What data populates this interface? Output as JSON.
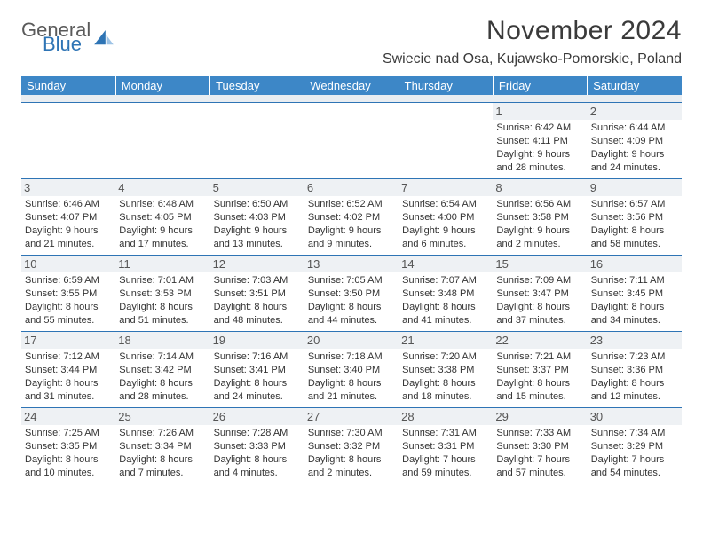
{
  "brand": {
    "line1": "General",
    "line2": "Blue"
  },
  "title": "November 2024",
  "location": "Swiecie nad Osa, Kujawsko-Pomorskie, Poland",
  "weekdays": [
    "Sunday",
    "Monday",
    "Tuesday",
    "Wednesday",
    "Thursday",
    "Friday",
    "Saturday"
  ],
  "colors": {
    "header_bg": "#3d87c7",
    "header_text": "#ffffff",
    "rule": "#2e74b5",
    "daynum_bg": "#eef1f4",
    "text": "#333333"
  },
  "weeks": [
    [
      {
        "empty": true
      },
      {
        "empty": true
      },
      {
        "empty": true
      },
      {
        "empty": true
      },
      {
        "empty": true
      },
      {
        "day": "1",
        "sunrise": "Sunrise: 6:42 AM",
        "sunset": "Sunset: 4:11 PM",
        "daylight1": "Daylight: 9 hours",
        "daylight2": "and 28 minutes."
      },
      {
        "day": "2",
        "sunrise": "Sunrise: 6:44 AM",
        "sunset": "Sunset: 4:09 PM",
        "daylight1": "Daylight: 9 hours",
        "daylight2": "and 24 minutes."
      }
    ],
    [
      {
        "day": "3",
        "sunrise": "Sunrise: 6:46 AM",
        "sunset": "Sunset: 4:07 PM",
        "daylight1": "Daylight: 9 hours",
        "daylight2": "and 21 minutes."
      },
      {
        "day": "4",
        "sunrise": "Sunrise: 6:48 AM",
        "sunset": "Sunset: 4:05 PM",
        "daylight1": "Daylight: 9 hours",
        "daylight2": "and 17 minutes."
      },
      {
        "day": "5",
        "sunrise": "Sunrise: 6:50 AM",
        "sunset": "Sunset: 4:03 PM",
        "daylight1": "Daylight: 9 hours",
        "daylight2": "and 13 minutes."
      },
      {
        "day": "6",
        "sunrise": "Sunrise: 6:52 AM",
        "sunset": "Sunset: 4:02 PM",
        "daylight1": "Daylight: 9 hours",
        "daylight2": "and 9 minutes."
      },
      {
        "day": "7",
        "sunrise": "Sunrise: 6:54 AM",
        "sunset": "Sunset: 4:00 PM",
        "daylight1": "Daylight: 9 hours",
        "daylight2": "and 6 minutes."
      },
      {
        "day": "8",
        "sunrise": "Sunrise: 6:56 AM",
        "sunset": "Sunset: 3:58 PM",
        "daylight1": "Daylight: 9 hours",
        "daylight2": "and 2 minutes."
      },
      {
        "day": "9",
        "sunrise": "Sunrise: 6:57 AM",
        "sunset": "Sunset: 3:56 PM",
        "daylight1": "Daylight: 8 hours",
        "daylight2": "and 58 minutes."
      }
    ],
    [
      {
        "day": "10",
        "sunrise": "Sunrise: 6:59 AM",
        "sunset": "Sunset: 3:55 PM",
        "daylight1": "Daylight: 8 hours",
        "daylight2": "and 55 minutes."
      },
      {
        "day": "11",
        "sunrise": "Sunrise: 7:01 AM",
        "sunset": "Sunset: 3:53 PM",
        "daylight1": "Daylight: 8 hours",
        "daylight2": "and 51 minutes."
      },
      {
        "day": "12",
        "sunrise": "Sunrise: 7:03 AM",
        "sunset": "Sunset: 3:51 PM",
        "daylight1": "Daylight: 8 hours",
        "daylight2": "and 48 minutes."
      },
      {
        "day": "13",
        "sunrise": "Sunrise: 7:05 AM",
        "sunset": "Sunset: 3:50 PM",
        "daylight1": "Daylight: 8 hours",
        "daylight2": "and 44 minutes."
      },
      {
        "day": "14",
        "sunrise": "Sunrise: 7:07 AM",
        "sunset": "Sunset: 3:48 PM",
        "daylight1": "Daylight: 8 hours",
        "daylight2": "and 41 minutes."
      },
      {
        "day": "15",
        "sunrise": "Sunrise: 7:09 AM",
        "sunset": "Sunset: 3:47 PM",
        "daylight1": "Daylight: 8 hours",
        "daylight2": "and 37 minutes."
      },
      {
        "day": "16",
        "sunrise": "Sunrise: 7:11 AM",
        "sunset": "Sunset: 3:45 PM",
        "daylight1": "Daylight: 8 hours",
        "daylight2": "and 34 minutes."
      }
    ],
    [
      {
        "day": "17",
        "sunrise": "Sunrise: 7:12 AM",
        "sunset": "Sunset: 3:44 PM",
        "daylight1": "Daylight: 8 hours",
        "daylight2": "and 31 minutes."
      },
      {
        "day": "18",
        "sunrise": "Sunrise: 7:14 AM",
        "sunset": "Sunset: 3:42 PM",
        "daylight1": "Daylight: 8 hours",
        "daylight2": "and 28 minutes."
      },
      {
        "day": "19",
        "sunrise": "Sunrise: 7:16 AM",
        "sunset": "Sunset: 3:41 PM",
        "daylight1": "Daylight: 8 hours",
        "daylight2": "and 24 minutes."
      },
      {
        "day": "20",
        "sunrise": "Sunrise: 7:18 AM",
        "sunset": "Sunset: 3:40 PM",
        "daylight1": "Daylight: 8 hours",
        "daylight2": "and 21 minutes."
      },
      {
        "day": "21",
        "sunrise": "Sunrise: 7:20 AM",
        "sunset": "Sunset: 3:38 PM",
        "daylight1": "Daylight: 8 hours",
        "daylight2": "and 18 minutes."
      },
      {
        "day": "22",
        "sunrise": "Sunrise: 7:21 AM",
        "sunset": "Sunset: 3:37 PM",
        "daylight1": "Daylight: 8 hours",
        "daylight2": "and 15 minutes."
      },
      {
        "day": "23",
        "sunrise": "Sunrise: 7:23 AM",
        "sunset": "Sunset: 3:36 PM",
        "daylight1": "Daylight: 8 hours",
        "daylight2": "and 12 minutes."
      }
    ],
    [
      {
        "day": "24",
        "sunrise": "Sunrise: 7:25 AM",
        "sunset": "Sunset: 3:35 PM",
        "daylight1": "Daylight: 8 hours",
        "daylight2": "and 10 minutes."
      },
      {
        "day": "25",
        "sunrise": "Sunrise: 7:26 AM",
        "sunset": "Sunset: 3:34 PM",
        "daylight1": "Daylight: 8 hours",
        "daylight2": "and 7 minutes."
      },
      {
        "day": "26",
        "sunrise": "Sunrise: 7:28 AM",
        "sunset": "Sunset: 3:33 PM",
        "daylight1": "Daylight: 8 hours",
        "daylight2": "and 4 minutes."
      },
      {
        "day": "27",
        "sunrise": "Sunrise: 7:30 AM",
        "sunset": "Sunset: 3:32 PM",
        "daylight1": "Daylight: 8 hours",
        "daylight2": "and 2 minutes."
      },
      {
        "day": "28",
        "sunrise": "Sunrise: 7:31 AM",
        "sunset": "Sunset: 3:31 PM",
        "daylight1": "Daylight: 7 hours",
        "daylight2": "and 59 minutes."
      },
      {
        "day": "29",
        "sunrise": "Sunrise: 7:33 AM",
        "sunset": "Sunset: 3:30 PM",
        "daylight1": "Daylight: 7 hours",
        "daylight2": "and 57 minutes."
      },
      {
        "day": "30",
        "sunrise": "Sunrise: 7:34 AM",
        "sunset": "Sunset: 3:29 PM",
        "daylight1": "Daylight: 7 hours",
        "daylight2": "and 54 minutes."
      }
    ]
  ]
}
